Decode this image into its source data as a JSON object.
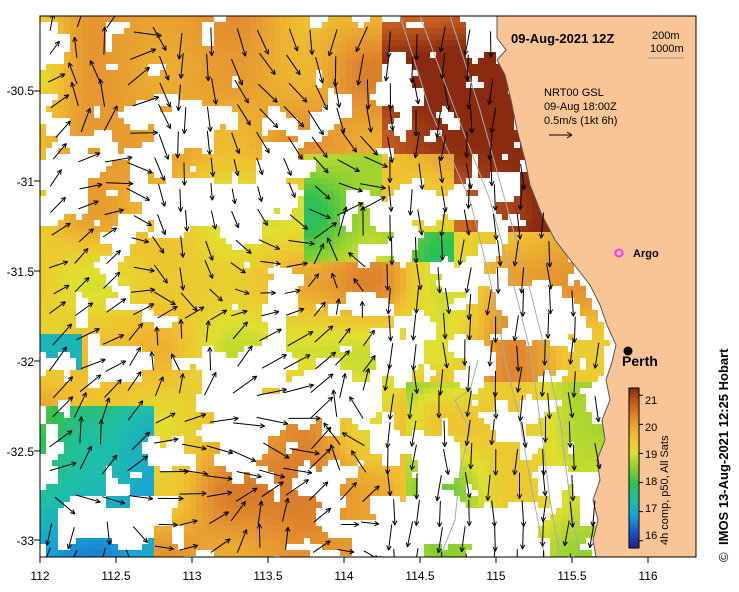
{
  "map": {
    "date_label": "09-Aug-2021 12Z",
    "contour_labels": [
      "200m",
      "1000m"
    ],
    "current_model": "NRT00 GSL",
    "current_time": "09-Aug 18:00Z",
    "current_scale": "0.5m/s (1kt 6h)",
    "lat_ticks": [
      "-30.5",
      "-31",
      "-31.5",
      "-32",
      "-32.5",
      "-33"
    ],
    "lon_ticks": [
      "112",
      "112.5",
      "113",
      "113.5",
      "114",
      "114.5",
      "115",
      "115.5",
      "116"
    ],
    "markers": [
      {
        "label": "Argo",
        "lon": 115.85,
        "lat": -31.45,
        "color": "#ff33ff"
      },
      {
        "label": "Perth",
        "lon": 115.86,
        "lat": -31.95,
        "color": "#000000"
      }
    ],
    "colorbar": {
      "min": 16,
      "max": 21,
      "ticks": [
        "21",
        "20",
        "19",
        "18",
        "17",
        "16"
      ],
      "label": "4h comp, p50, All Sats",
      "colors": [
        "#20208c",
        "#1a56c8",
        "#19a0d8",
        "#1fbfa8",
        "#2fc050",
        "#8cd030",
        "#e0e030",
        "#f0c030",
        "#e49030",
        "#c86020",
        "#8a2a10"
      ]
    },
    "credit": "IMOS 13-Aug-2021 12:25 Hobart",
    "copyright_symbol": "©"
  }
}
